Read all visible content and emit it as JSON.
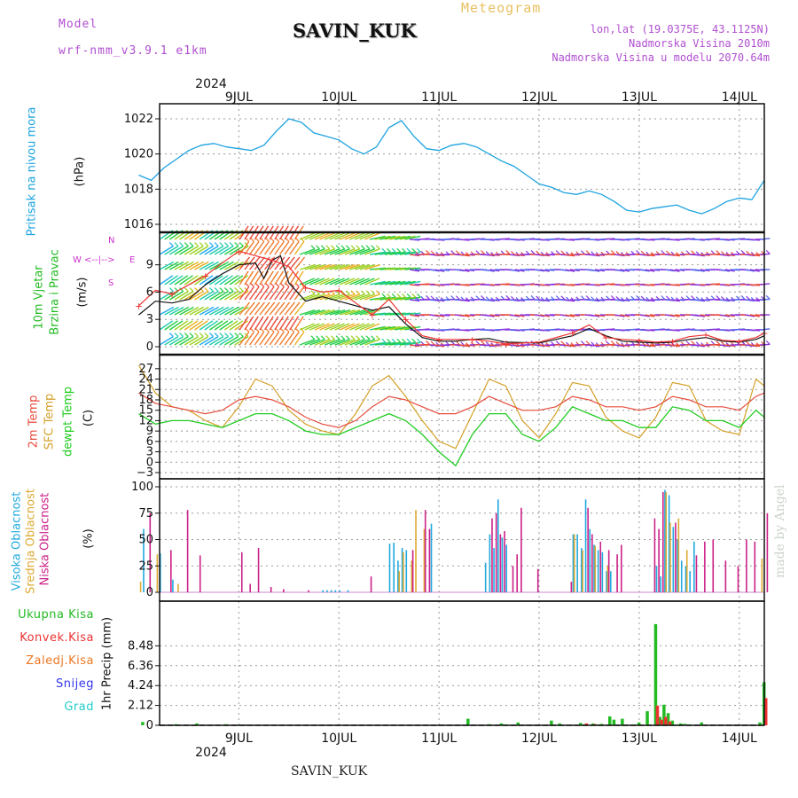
{
  "header": {
    "model_label": "Model",
    "model_name": "wrf-nmm_v3.9.1  e1km",
    "station": "SAVIN_KUK",
    "meteogram": "Meteogram",
    "lonlat": "lon,lat (19.0375E, 43.1125N)",
    "elev": "Nadmorska Visina 2010m",
    "elev_model": "Nadmorska Visina u modelu 2070.64m",
    "year_top": "2024",
    "year_bottom": "2024",
    "footer": "SAVIN_KUK",
    "credit": "made by Angel"
  },
  "colors": {
    "pressure": "#1ca3e0",
    "wind_label": "#22bb22",
    "dir_label": "#cc33cc",
    "t2m": "#e74c3c",
    "sfc": "#d4a028",
    "dew": "#22cc22",
    "cloud_high": "#22aadd",
    "cloud_mid": "#ddaa33",
    "cloud_low": "#cc2288",
    "precip_total": "#22bb22",
    "precip_conv": "#ee3333",
    "precip_frz": "#ee7722",
    "precip_snow": "#3333ee",
    "precip_grad": "#22cccc"
  },
  "day_labels": [
    "9JUL",
    "10JUL",
    "11JUL",
    "12JUL",
    "13JUL",
    "14JUL"
  ],
  "labels": {
    "pressure": [
      "Pritisak na nivou mora",
      "(hPa)"
    ],
    "wind": [
      "10m Vjetar",
      "Brzina i Pravac",
      "(m/s)"
    ],
    "compass": {
      "n": "N",
      "s": "S",
      "w": "W",
      "e": "E",
      "arrows": "<--|-->"
    },
    "temp": [
      "2m Temp",
      "SFC Temp",
      "dewpt Temp",
      "(C)"
    ],
    "cloud": [
      "Visoka Oblacnost",
      "Srednja Oblacnost",
      "Niska Oblacnost",
      "(%)"
    ],
    "precip_legend": [
      "Ukupna  Kisa",
      "Konvek.Kisa",
      "Zaledj.Kisa",
      "Snijeg",
      "Grad"
    ],
    "precip_axis": "1hr Precip  (mm)"
  },
  "chart_data": [
    {
      "type": "line",
      "name": "pressure",
      "x_unit": "hours",
      "x_range": [
        0,
        150
      ],
      "ylim": [
        1016,
        1022
      ],
      "yticks": [
        1016,
        1018,
        1020,
        1022
      ],
      "series": [
        {
          "x": [
            0,
            3,
            6,
            9,
            12,
            15,
            18,
            21,
            24,
            27,
            30,
            33,
            36,
            39,
            42,
            45,
            48,
            51,
            54,
            57,
            60,
            63,
            66,
            69,
            72,
            75,
            78,
            81,
            84,
            87,
            90,
            93,
            96,
            99,
            102,
            105,
            108,
            111,
            114,
            117,
            120,
            123,
            126,
            129,
            132,
            135,
            138,
            141,
            144,
            147,
            150
          ],
          "values": [
            1018.8,
            1018.5,
            1019.2,
            1019.7,
            1020.2,
            1020.5,
            1020.6,
            1020.4,
            1020.3,
            1020.2,
            1020.5,
            1021.3,
            1022.0,
            1021.8,
            1021.2,
            1021.0,
            1020.8,
            1020.3,
            1020.0,
            1020.4,
            1021.5,
            1021.9,
            1021.0,
            1020.3,
            1020.2,
            1020.5,
            1020.6,
            1020.4,
            1020.0,
            1019.6,
            1019.3,
            1018.8,
            1018.3,
            1018.1,
            1017.8,
            1017.7,
            1017.9,
            1017.7,
            1017.3,
            1016.8,
            1016.7,
            1016.9,
            1017.0,
            1017.1,
            1016.8,
            1016.6,
            1016.9,
            1017.3,
            1017.5,
            1017.4,
            1018.5
          ]
        }
      ]
    },
    {
      "type": "line",
      "name": "wind",
      "x_range": [
        0,
        150
      ],
      "ylim": [
        0,
        11.5
      ],
      "yticks": [
        0,
        3,
        6,
        9
      ],
      "series": [
        {
          "name": "speed",
          "x": [
            0,
            4,
            8,
            12,
            16,
            20,
            24,
            28,
            30,
            32,
            34,
            36,
            40,
            44,
            48,
            52,
            56,
            60,
            64,
            68,
            72,
            76,
            80,
            84,
            88,
            96,
            104,
            108,
            112,
            116,
            120,
            124,
            128,
            132,
            136,
            140,
            144,
            148,
            150
          ],
          "values": [
            3.5,
            5.0,
            4.8,
            5.2,
            6.8,
            8.0,
            9.0,
            9.2,
            7.5,
            9.5,
            10.0,
            7.0,
            5.0,
            5.5,
            5.0,
            4.5,
            4.0,
            4.4,
            2.5,
            1.0,
            0.6,
            0.6,
            0.8,
            0.9,
            0.5,
            0.4,
            1.2,
            2.0,
            1.2,
            0.6,
            0.5,
            0.4,
            0.5,
            0.8,
            1.0,
            0.6,
            0.5,
            0.8,
            1.2
          ]
        },
        {
          "name": "gust",
          "x": [
            0,
            4,
            8,
            12,
            16,
            20,
            24,
            28,
            32,
            36,
            40,
            44,
            48,
            52,
            56,
            60,
            64,
            68,
            72,
            76,
            80,
            84,
            88,
            96,
            104,
            108,
            112,
            116,
            120,
            124,
            128,
            132,
            136,
            140,
            144,
            148,
            150
          ],
          "values": [
            4.5,
            6.2,
            5.8,
            6.8,
            7.8,
            9.2,
            10.5,
            10.0,
            9.5,
            8.8,
            6.5,
            6.0,
            6.2,
            4.8,
            3.5,
            5.2,
            3.0,
            1.2,
            0.8,
            0.8,
            0.8,
            0.6,
            0.3,
            0.5,
            1.5,
            2.4,
            1.0,
            0.8,
            0.7,
            0.5,
            0.6,
            1.1,
            1.3,
            0.7,
            0.6,
            1.0,
            1.5
          ]
        }
      ]
    },
    {
      "type": "line",
      "name": "temperature",
      "x_range": [
        0,
        150
      ],
      "ylim": [
        -3,
        29
      ],
      "yticks": [
        -3,
        0,
        3,
        6,
        9,
        12,
        15,
        18,
        21,
        24,
        27
      ],
      "series": [
        {
          "name": "2m Temp",
          "x": [
            0,
            4,
            8,
            12,
            16,
            20,
            24,
            28,
            32,
            36,
            40,
            44,
            48,
            52,
            56,
            60,
            64,
            68,
            72,
            76,
            80,
            84,
            88,
            92,
            96,
            100,
            104,
            108,
            112,
            116,
            120,
            124,
            128,
            132,
            136,
            140,
            144,
            148,
            150
          ],
          "values": [
            20,
            17,
            16,
            15,
            14,
            15,
            18,
            19,
            18,
            16,
            13,
            11,
            10,
            12,
            16,
            19,
            18,
            16,
            14,
            14,
            16,
            19,
            17,
            15,
            15,
            16,
            19,
            18,
            16,
            16,
            15,
            16,
            19,
            18,
            16,
            16,
            15,
            19,
            20
          ]
        },
        {
          "name": "SFC Temp",
          "x": [
            0,
            4,
            8,
            12,
            16,
            20,
            24,
            28,
            32,
            36,
            40,
            44,
            48,
            52,
            56,
            60,
            64,
            68,
            72,
            76,
            80,
            84,
            88,
            92,
            96,
            100,
            104,
            108,
            112,
            116,
            120,
            124,
            128,
            132,
            136,
            140,
            144,
            148,
            150
          ],
          "values": [
            28,
            20,
            16,
            15,
            12,
            10,
            16,
            24,
            22,
            15,
            11,
            9,
            8,
            14,
            22,
            25,
            19,
            12,
            6,
            4,
            14,
            24,
            22,
            12,
            7,
            14,
            23,
            22,
            13,
            9,
            7,
            13,
            23,
            22,
            12,
            9,
            8,
            24,
            22
          ]
        },
        {
          "name": "dewpt Temp",
          "x": [
            0,
            4,
            8,
            12,
            16,
            20,
            24,
            28,
            32,
            36,
            40,
            44,
            48,
            52,
            56,
            60,
            64,
            68,
            72,
            76,
            80,
            84,
            88,
            92,
            96,
            100,
            104,
            108,
            112,
            116,
            120,
            124,
            128,
            132,
            136,
            140,
            144,
            148,
            150
          ],
          "values": [
            14,
            11,
            12,
            12,
            11,
            10,
            12,
            14,
            14,
            12,
            9,
            8,
            8,
            10,
            12,
            14,
            12,
            8,
            3,
            -1,
            8,
            14,
            14,
            8,
            6,
            10,
            16,
            14,
            12,
            12,
            10,
            10,
            16,
            15,
            12,
            12,
            10,
            15,
            13
          ]
        }
      ]
    },
    {
      "type": "bar",
      "name": "cloud",
      "x_range": [
        0,
        150
      ],
      "ylim": [
        0,
        100
      ],
      "yticks": [
        0,
        25,
        50,
        75,
        100
      ],
      "series": [
        {
          "name": "Visoka Oblacnost",
          "x": [
            1,
            5,
            8,
            44,
            45,
            46,
            47,
            48,
            50,
            60,
            61,
            62,
            63,
            64,
            70,
            83,
            84,
            85,
            86,
            87,
            88,
            104,
            105,
            106,
            107,
            108,
            109,
            110,
            111,
            112,
            113,
            124,
            125,
            126,
            127,
            128,
            129,
            130,
            131,
            132,
            133
          ],
          "values": [
            60,
            37,
            12,
            2,
            2,
            2,
            2,
            2,
            2,
            46,
            47,
            30,
            42,
            40,
            65,
            28,
            55,
            42,
            88,
            52,
            45,
            55,
            55,
            42,
            88,
            60,
            45,
            40,
            38,
            20,
            20,
            25,
            15,
            97,
            92,
            62,
            50,
            30,
            25,
            20,
            48
          ]
        },
        {
          "name": "Srednja Oblacnost",
          "x": [
            0,
            4,
            9,
            62,
            63,
            65,
            66,
            68,
            104,
            106,
            109,
            112,
            126,
            127,
            129,
            131,
            149
          ],
          "values": [
            10,
            36,
            8,
            20,
            38,
            30,
            78,
            60,
            55,
            40,
            44,
            25,
            95,
            66,
            70,
            40,
            32
          ]
        },
        {
          "name": "Niska Oblacnost",
          "x": [
            2,
            7,
            11,
            14,
            24,
            26,
            28,
            31,
            34,
            40,
            55,
            65,
            68,
            69,
            84,
            85,
            86,
            87,
            89,
            90,
            91,
            95,
            103,
            107,
            108,
            110,
            112,
            114,
            115,
            123,
            124,
            125,
            128,
            133,
            135,
            137,
            140,
            143,
            145,
            147,
            150
          ],
          "values": [
            75,
            40,
            78,
            35,
            38,
            8,
            42,
            5,
            3,
            2,
            15,
            40,
            78,
            60,
            70,
            75,
            55,
            58,
            25,
            36,
            80,
            22,
            10,
            80,
            55,
            48,
            40,
            36,
            45,
            70,
            60,
            95,
            66,
            35,
            48,
            50,
            30,
            25,
            50,
            48,
            75
          ]
        }
      ]
    },
    {
      "type": "bar",
      "name": "precipitation",
      "x_range": [
        0,
        150
      ],
      "ylim": [
        0,
        10.6
      ],
      "yticks": [
        0,
        2.12,
        4.24,
        6.36,
        8.48
      ],
      "series": [
        {
          "name": "Ukupna  Kisa",
          "x": [
            1,
            5,
            9,
            14,
            19,
            21,
            24,
            26,
            29,
            44,
            59,
            63,
            67,
            71,
            79,
            84,
            86,
            87,
            88,
            89,
            91,
            99,
            101,
            106,
            107,
            108,
            109,
            110,
            111,
            113,
            114,
            116,
            117,
            119,
            120,
            122,
            124,
            125,
            126,
            127,
            128,
            129,
            130,
            131,
            132,
            133,
            135,
            149,
            150
          ],
          "values": [
            0.35,
            0.08,
            0.12,
            0.2,
            0.05,
            0.12,
            0.08,
            0.08,
            0.05,
            0.05,
            0.05,
            0.05,
            0.05,
            0.05,
            0.7,
            0.12,
            0.05,
            0.2,
            0.1,
            0.05,
            0.3,
            0.5,
            0.2,
            0.25,
            0.12,
            0.05,
            0.2,
            0.1,
            0.15,
            0.95,
            0.6,
            0.7,
            0.05,
            0.1,
            0.3,
            1.5,
            10.8,
            0.9,
            2.2,
            1.3,
            0.5,
            0.1,
            0.2,
            0.15,
            0.1,
            0.05,
            0.3,
            0.3,
            4.6
          ]
        },
        {
          "name": "Konvek.Kisa",
          "x": [
            107,
            109,
            124,
            125,
            126,
            127,
            150
          ],
          "values": [
            0.2,
            0.12,
            2.1,
            0.6,
            0.9,
            0.4,
            2.9
          ]
        },
        {
          "name": "Zaledj.Kisa",
          "x": [],
          "values": []
        },
        {
          "name": "Snijeg",
          "x": [],
          "values": []
        },
        {
          "name": "Grad",
          "x": [],
          "values": []
        }
      ]
    }
  ]
}
